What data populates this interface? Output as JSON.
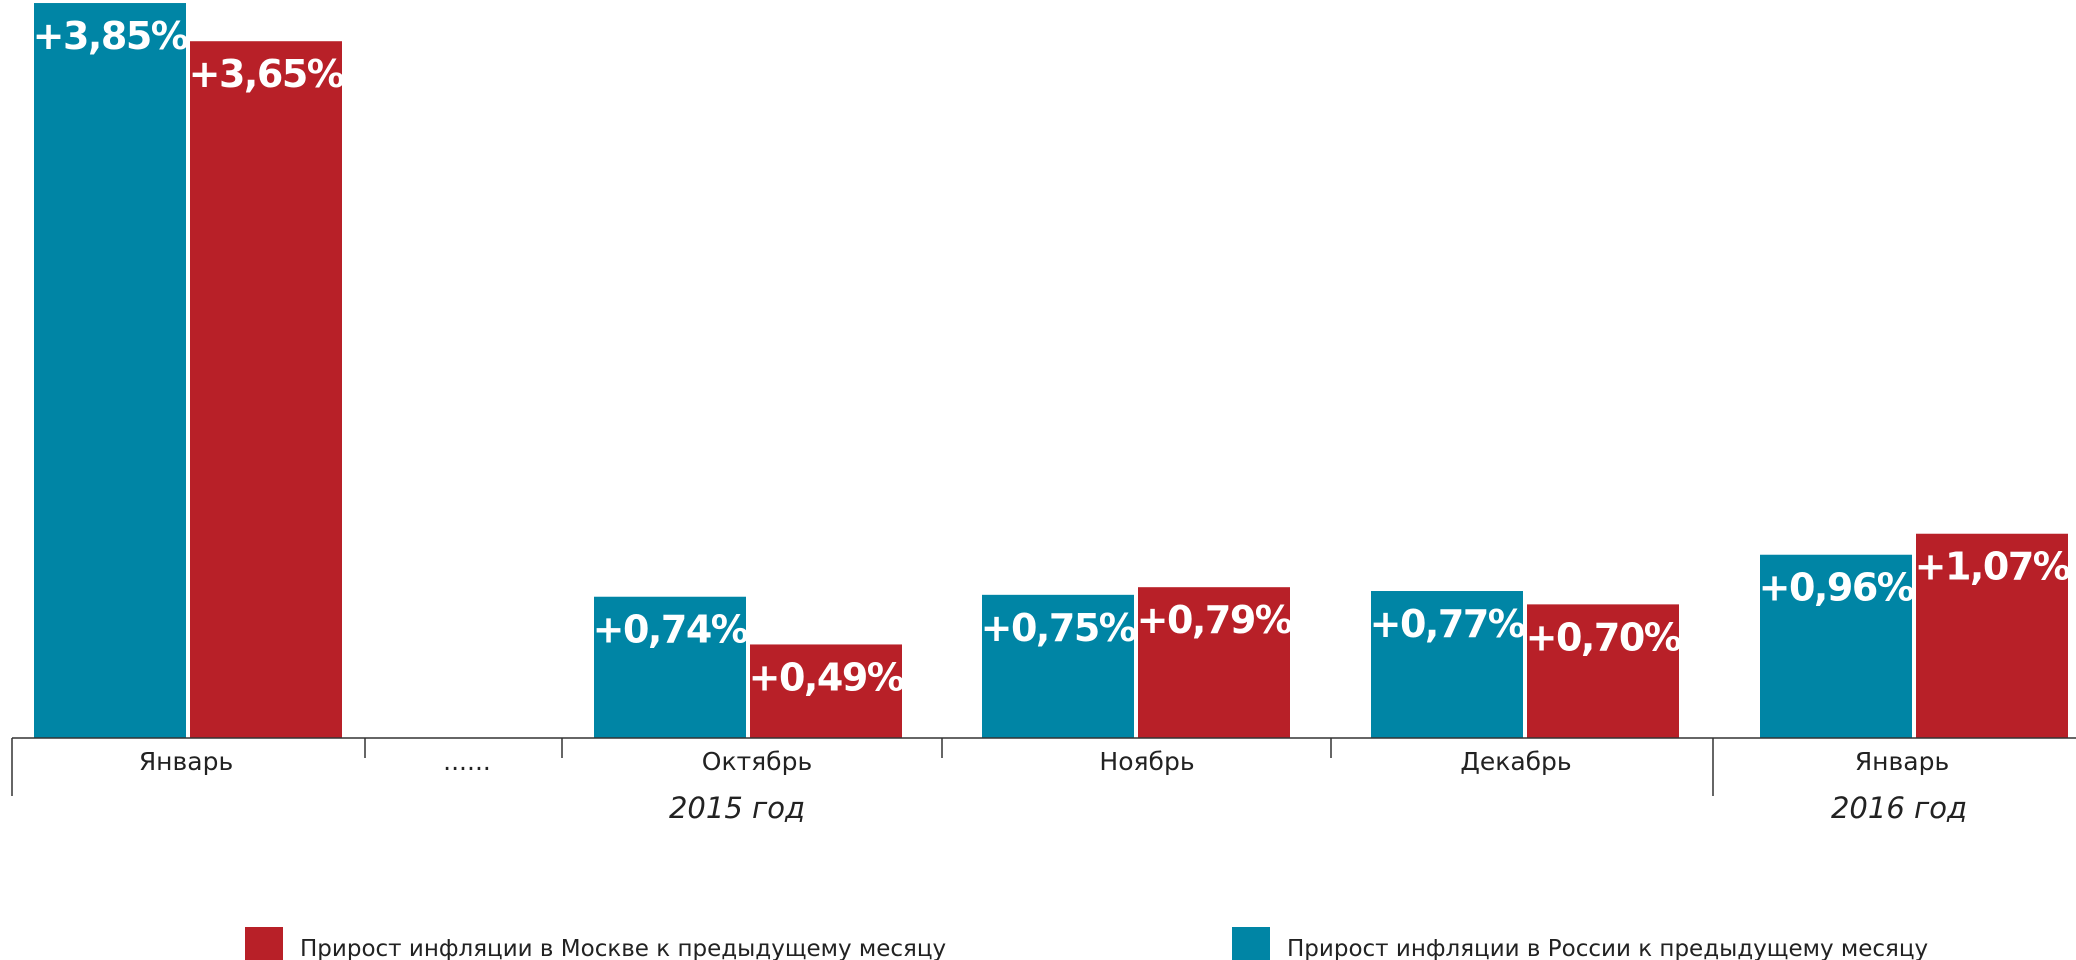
{
  "chart_data": {
    "type": "bar",
    "categories": [
      "Январь",
      "......",
      "Октябрь",
      "Ноябрь",
      "Декабрь",
      "Январь"
    ],
    "year_labels": [
      "2015 год",
      "2016 год"
    ],
    "series": [
      {
        "name": "Прирост инфляции в России к предыдущему месяцу",
        "color": "#0085A5",
        "values": [
          3.85,
          null,
          0.74,
          0.75,
          0.77,
          0.96
        ],
        "labels": [
          "+3,85%",
          "",
          "+0,74%",
          "+0,75%",
          "+0,77%",
          "+0,96%"
        ]
      },
      {
        "name": "Прирост инфляции в Москве к предыдущему месяцу",
        "color": "#B82028",
        "values": [
          3.65,
          null,
          0.49,
          0.79,
          0.7,
          1.07
        ],
        "labels": [
          "+3,65%",
          "",
          "+0,49%",
          "+0,79%",
          "+0,70%",
          "+1,07%"
        ]
      }
    ],
    "legend": [
      {
        "label": "Прирост инфляции в Москве к предыдущему месяцу",
        "color": "#B82028"
      },
      {
        "label": "Прирост инфляции в России к предыдущему месяцу",
        "color": "#0085A5"
      }
    ],
    "legend_position": "bottom",
    "grid": false
  }
}
